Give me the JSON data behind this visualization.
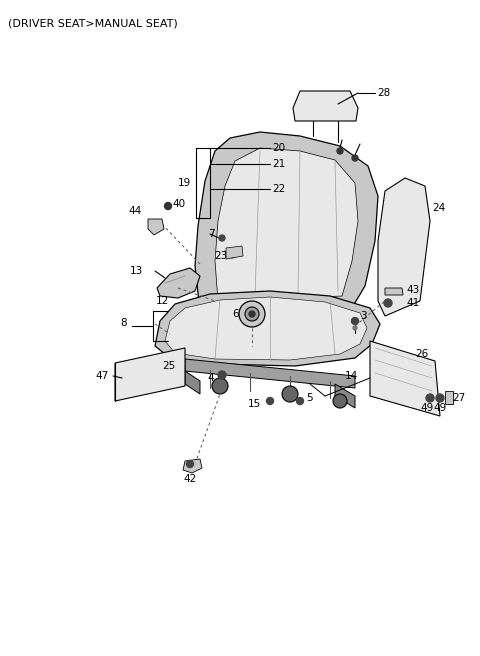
{
  "title": "(DRIVER SEAT>MANUAL SEAT)",
  "title_fontsize": 8,
  "bg_color": "#ffffff",
  "label_fontsize": 7.5,
  "line_color": "#000000",
  "dashed_color": "#555555",
  "gray_light": "#e8e8e8",
  "gray_mid": "#c8c8c8",
  "gray_dark": "#a0a0a0"
}
